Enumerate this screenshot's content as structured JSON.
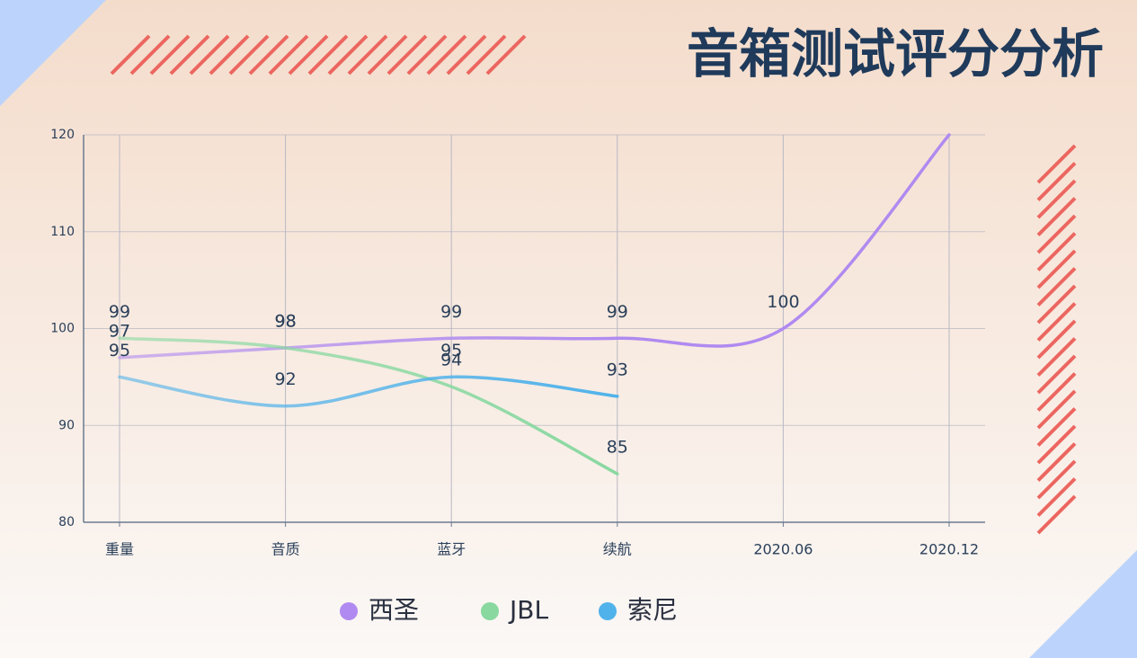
{
  "chart_data": {
    "type": "line",
    "title": "音箱测试评分分析",
    "categories": [
      "重量",
      "音质",
      "蓝牙",
      "续航",
      "2020.06",
      "2020.12"
    ],
    "series": [
      {
        "name": "西圣",
        "color": "#b08af0",
        "values": [
          97,
          98,
          99,
          99,
          100,
          120
        ],
        "value_labels": [
          "97",
          "98",
          "99",
          "99",
          "100",
          null
        ]
      },
      {
        "name": "JBL",
        "color": "#88d8a0",
        "values": [
          99,
          98,
          94,
          85,
          null,
          null
        ]
      },
      {
        "name": "索尼",
        "color": "#50b2ea",
        "values": [
          95,
          92,
          95,
          93,
          null,
          null
        ]
      }
    ],
    "ylim": [
      80,
      120
    ],
    "yticks": [
      80,
      90,
      100,
      110,
      120
    ],
    "grid": true,
    "smooth": true,
    "legend": "bottom"
  }
}
